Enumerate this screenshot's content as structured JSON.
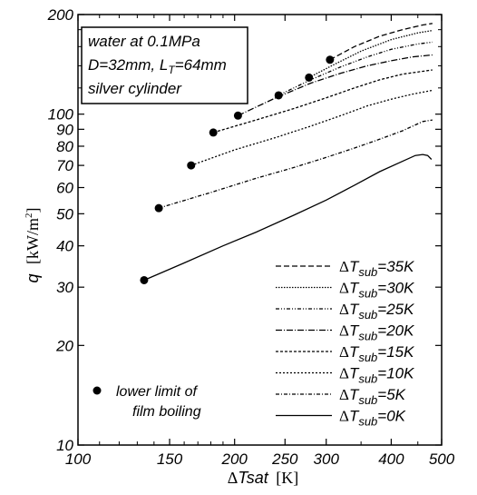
{
  "chart_data": {
    "type": "line",
    "xscale": "log",
    "yscale": "log",
    "xlim": [
      100,
      500
    ],
    "ylim": [
      10,
      200
    ],
    "grid": false,
    "xlabel": {
      "delta": "Δ",
      "var": "T",
      "sub": "sat",
      "unit": "[K]"
    },
    "ylabel": {
      "var": "q",
      "unit": "[kW/m",
      "unit_sup": "2",
      "unit_end": "]"
    },
    "x_ticks": [
      "100",
      "150",
      "200",
      "250",
      "300",
      "400",
      "500"
    ],
    "y_ticks": [
      "10",
      "20",
      "30",
      "40",
      "50",
      "60",
      "70",
      "80",
      "90",
      "100",
      "200"
    ],
    "x_tick_values": [
      100,
      150,
      200,
      250,
      300,
      400,
      500
    ],
    "y_tick_values": [
      10,
      20,
      30,
      40,
      50,
      60,
      70,
      80,
      90,
      100,
      200
    ],
    "info_box": [
      "water at 0.1MPa",
      "D=32mm, L",
      "T",
      "=64mm",
      "silver cylinder"
    ],
    "marker_legend": [
      "lower limit of",
      "film boiling"
    ],
    "legend_placement": "bottom-right",
    "series": [
      {
        "name": "ΔTsub=35K",
        "legend": {
          "delta": "Δ",
          "var": "T",
          "sub": "sub",
          "val": "=35K"
        },
        "dash": "6,3",
        "x": [
          305,
          340,
          380,
          420,
          460,
          480
        ],
        "y": [
          146,
          160,
          172,
          180,
          186,
          188
        ]
      },
      {
        "name": "ΔTsub=30K",
        "legend": {
          "delta": "Δ",
          "var": "T",
          "sub": "sub",
          "val": "=30K"
        },
        "dash": "1.5,1.5",
        "x": [
          278,
          310,
          350,
          400,
          450,
          480
        ],
        "y": [
          129,
          141,
          155,
          168,
          176,
          179
        ]
      },
      {
        "name": "ΔTsub=25K",
        "legend": {
          "delta": "Δ",
          "var": "T",
          "sub": "sub",
          "val": "=25K"
        },
        "dash": "4,2,1,2,1,2",
        "x": [
          243,
          280,
          320,
          360,
          400,
          450,
          480
        ],
        "y": [
          114,
          127,
          139,
          149,
          157,
          163,
          165
        ]
      },
      {
        "name": "ΔTsub=20K",
        "legend": {
          "delta": "Δ",
          "var": "T",
          "sub": "sub",
          "val": "=20K"
        },
        "dash": "7,2,1,2",
        "x": [
          203,
          240,
          280,
          320,
          360,
          400,
          440,
          480
        ],
        "y": [
          99,
          112,
          124,
          133,
          140,
          145,
          149,
          151
        ]
      },
      {
        "name": "ΔTsub=15K",
        "legend": {
          "delta": "Δ",
          "var": "T",
          "sub": "sub",
          "val": "=15K"
        },
        "dash": "3,2",
        "x": [
          182,
          220,
          260,
          300,
          340,
          380,
          420,
          480
        ],
        "y": [
          88,
          96,
          104,
          112,
          120,
          127,
          132,
          136
        ]
      },
      {
        "name": "ΔTsub=10K",
        "legend": {
          "delta": "Δ",
          "var": "T",
          "sub": "sub",
          "val": "=10K"
        },
        "dash": "2,2",
        "x": [
          165,
          200,
          240,
          280,
          320,
          360,
          400,
          440,
          480
        ],
        "y": [
          70,
          78,
          85,
          92,
          99,
          106,
          111,
          115,
          118
        ]
      },
      {
        "name": "ΔTsub=5K",
        "legend": {
          "delta": "Δ",
          "var": "T",
          "sub": "sub",
          "val": "=5K"
        },
        "dash": "4,2,1,2",
        "x": [
          143,
          180,
          220,
          260,
          300,
          340,
          380,
          420,
          460,
          480
        ],
        "y": [
          52,
          58,
          64,
          69,
          74,
          79,
          84,
          89,
          95,
          96
        ]
      },
      {
        "name": "ΔTsub=0K",
        "legend": {
          "delta": "Δ",
          "var": "T",
          "sub": "sub",
          "val": "=0K"
        },
        "dash": "",
        "x": [
          134,
          160,
          190,
          220,
          260,
          300,
          340,
          380,
          420,
          445,
          460,
          470,
          478
        ],
        "y": [
          31.5,
          35.5,
          40,
          44,
          49.5,
          55,
          61,
          67,
          72,
          75,
          75.5,
          75,
          73
        ]
      }
    ]
  }
}
